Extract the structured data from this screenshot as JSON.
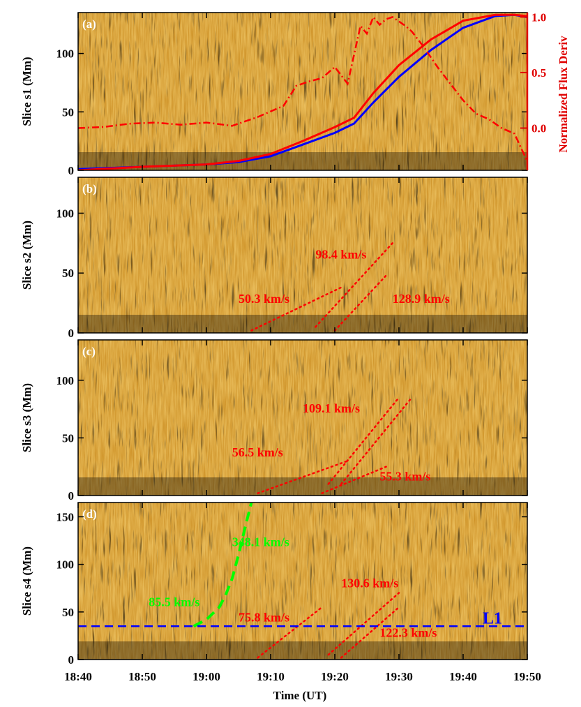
{
  "chart_data": {
    "type": "line",
    "title": "",
    "time_range_minutes_since_1840": [
      0,
      70
    ],
    "x_axis": {
      "label": "Time (UT)",
      "ticks": [
        "18:40",
        "18:50",
        "19:00",
        "19:10",
        "19:20",
        "19:30",
        "19:40",
        "19:50"
      ]
    },
    "right_axis": {
      "label": "Normalized Flux Deriv",
      "ticks": [
        "0.0",
        "0.5",
        "1.0"
      ],
      "color": "#e00000"
    },
    "panels": [
      {
        "tag": "(a)",
        "ylabel": "Slice s1 (Mm)",
        "ylim": [
          0,
          135
        ],
        "yticks": [
          "0",
          "50",
          "100"
        ],
        "yvals": [
          0,
          50,
          100
        ],
        "series": [
          {
            "color": "#0000ff",
            "style": "solid",
            "x": [
              "18:40",
              "18:50",
              "19:00",
              "19:05",
              "19:10",
              "19:15",
              "19:20",
              "19:23",
              "19:26",
              "19:30",
              "19:35",
              "19:40",
              "19:45",
              "19:48",
              "19:50"
            ],
            "y": [
              1,
              3,
              5,
              7,
              12,
              22,
              32,
              40,
              58,
              80,
              103,
              122,
              132,
              133,
              131
            ]
          },
          {
            "color": "#ff0000",
            "style": "solid",
            "x": [
              "18:40",
              "18:50",
              "19:00",
              "19:05",
              "19:10",
              "19:15",
              "19:20",
              "19:23",
              "19:26",
              "19:30",
              "19:35",
              "19:40",
              "19:45",
              "19:48",
              "19:50"
            ],
            "y": [
              0,
              3,
              5,
              8,
              14,
              25,
              37,
              45,
              66,
              90,
              112,
              128,
              133,
              133,
              132
            ]
          },
          {
            "color": "#ff0000",
            "style": "dashdot",
            "x": [
              "18:40",
              "18:44",
              "18:48",
              "18:52",
              "18:56",
              "19:00",
              "19:04",
              "19:08",
              "19:10",
              "19:12",
              "19:14",
              "19:16",
              "19:18",
              "19:20",
              "19:22",
              "19:24",
              "19:25",
              "19:26",
              "19:27",
              "19:28",
              "19:29",
              "19:30",
              "19:31",
              "19:32",
              "19:34",
              "19:36",
              "19:38",
              "19:40",
              "19:42",
              "19:44",
              "19:46",
              "19:48",
              "19:50"
            ],
            "y": [
              0.0,
              0.01,
              0.04,
              0.05,
              0.03,
              0.05,
              0.02,
              0.1,
              0.15,
              0.2,
              0.38,
              0.42,
              0.45,
              0.55,
              0.4,
              0.92,
              0.85,
              1.0,
              0.93,
              0.98,
              1.0,
              0.96,
              0.92,
              0.87,
              0.72,
              0.55,
              0.4,
              0.25,
              0.13,
              0.08,
              0.0,
              -0.05,
              -0.3
            ]
          }
        ],
        "speed_labels": []
      },
      {
        "tag": "(b)",
        "ylabel": "Slice s2 (Mm)",
        "ylim": [
          0,
          130
        ],
        "yticks": [
          "0",
          "50",
          "100"
        ],
        "yvals": [
          0,
          50,
          100
        ],
        "series": [
          {
            "color": "#ff0000",
            "style": "dotted",
            "x": [
              "19:07",
              "19:21"
            ],
            "y": [
              2,
              38
            ]
          },
          {
            "color": "#ff0000",
            "style": "dotted",
            "x": [
              "19:17",
              "19:29"
            ],
            "y": [
              5,
              75
            ]
          },
          {
            "color": "#ff0000",
            "style": "dotted",
            "x": [
              "19:20",
              "19:28"
            ],
            "y": [
              2,
              48
            ]
          }
        ],
        "speed_labels": [
          {
            "text": "98.4 km/s",
            "x": "19:17",
            "y": 62,
            "color": "#ff0000"
          },
          {
            "text": "50.3 km/s",
            "x": "19:05",
            "y": 25,
            "color": "#ff0000"
          },
          {
            "text": "128.9 km/s",
            "x": "19:29",
            "y": 25,
            "color": "#ff0000"
          }
        ]
      },
      {
        "tag": "(c)",
        "ylabel": "Slice s3 (Mm)",
        "ylim": [
          0,
          135
        ],
        "yticks": [
          "0",
          "50",
          "100"
        ],
        "yvals": [
          0,
          50,
          100
        ],
        "series": [
          {
            "color": "#ff0000",
            "style": "dotted",
            "x": [
              "19:08",
              "19:22"
            ],
            "y": [
              2,
              30
            ]
          },
          {
            "color": "#ff0000",
            "style": "dotted",
            "x": [
              "19:19",
              "19:30"
            ],
            "y": [
              10,
              85
            ]
          },
          {
            "color": "#ff0000",
            "style": "dotted",
            "x": [
              "19:21",
              "19:32"
            ],
            "y": [
              10,
              85
            ]
          },
          {
            "color": "#ff0000",
            "style": "dotted",
            "x": [
              "19:18",
              "19:28"
            ],
            "y": [
              2,
              25
            ]
          }
        ],
        "speed_labels": [
          {
            "text": "109.1 km/s",
            "x": "19:15",
            "y": 72,
            "color": "#ff0000"
          },
          {
            "text": "56.5 km/s",
            "x": "19:04",
            "y": 34,
            "color": "#ff0000"
          },
          {
            "text": "55.3 km/s",
            "x": "19:27",
            "y": 13,
            "color": "#ff0000"
          }
        ]
      },
      {
        "tag": "(d)",
        "ylabel": "Slice s4 (Mm)",
        "ylim": [
          0,
          165
        ],
        "yticks": [
          "0",
          "50",
          "100",
          "150"
        ],
        "yvals": [
          0,
          50,
          100,
          150
        ],
        "series": [
          {
            "color": "#00ff00",
            "style": "dashed",
            "x": [
              "18:58",
              "19:00",
              "19:02",
              "19:03",
              "19:04",
              "19:05",
              "19:06",
              "19:07"
            ],
            "y": [
              35,
              42,
              55,
              68,
              85,
              110,
              138,
              165
            ]
          },
          {
            "color": "#ff0000",
            "style": "dotted",
            "x": [
              "19:08",
              "19:18"
            ],
            "y": [
              2,
              55
            ]
          },
          {
            "color": "#ff0000",
            "style": "dotted",
            "x": [
              "19:19",
              "19:30"
            ],
            "y": [
              5,
              70
            ]
          },
          {
            "color": "#ff0000",
            "style": "dotted",
            "x": [
              "19:21",
              "19:30"
            ],
            "y": [
              2,
              55
            ]
          }
        ],
        "hline": {
          "y": 35,
          "color": "#0000ff",
          "label": "L1"
        },
        "speed_labels": [
          {
            "text": "348.1 km/s",
            "x": "19:04",
            "y": 119,
            "color": "#00ff00"
          },
          {
            "text": "85.5 km/s",
            "x": "18:51",
            "y": 56,
            "color": "#00ff00"
          },
          {
            "text": "75.8 km/s",
            "x": "19:05",
            "y": 40,
            "color": "#ff0000"
          },
          {
            "text": "130.6 km/s",
            "x": "19:21",
            "y": 76,
            "color": "#ff0000"
          },
          {
            "text": "122.3 km/s",
            "x": "19:27",
            "y": 24,
            "color": "#ff0000"
          }
        ]
      }
    ]
  }
}
